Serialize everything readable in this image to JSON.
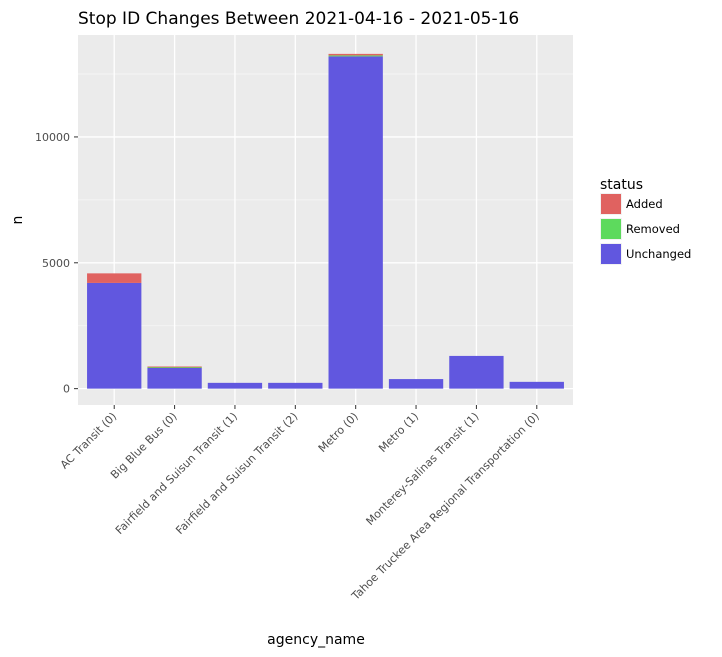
{
  "chart_data": {
    "type": "bar",
    "stacked": true,
    "title": "Stop ID Changes Between 2021-04-16 - 2021-05-16",
    "xlabel": "agency_name",
    "ylabel": "n",
    "categories": [
      "AC Transit (0)",
      "Big Blue Bus (0)",
      "Fairfield and Suisun Transit (1)",
      "Fairfield and Suisun Transit (2)",
      "Metro (0)",
      "Metro (1)",
      "Monterey-Salinas Transit (1)",
      "Tahoe Truckee Area Regional Transportation (0)"
    ],
    "series": [
      {
        "name": "Unchanged",
        "color": "#619CFF",
        "fill": "#6157DF",
        "values": [
          4200,
          820,
          230,
          230,
          13200,
          380,
          1300,
          270
        ]
      },
      {
        "name": "Removed",
        "color": "#5DDA5D",
        "values": [
          0,
          40,
          0,
          0,
          40,
          0,
          0,
          0
        ]
      },
      {
        "name": "Added",
        "color": "#E06260",
        "values": [
          380,
          20,
          0,
          0,
          60,
          0,
          0,
          0
        ]
      }
    ],
    "stack_order_bottom_to_top": [
      "Unchanged",
      "Removed",
      "Added"
    ],
    "yticks": [
      0,
      5000,
      10000
    ],
    "ylim": [
      -650,
      14050
    ],
    "grid": true,
    "legend": {
      "title": "status",
      "position": "right",
      "entries": [
        "Added",
        "Removed",
        "Unchanged"
      ]
    }
  }
}
